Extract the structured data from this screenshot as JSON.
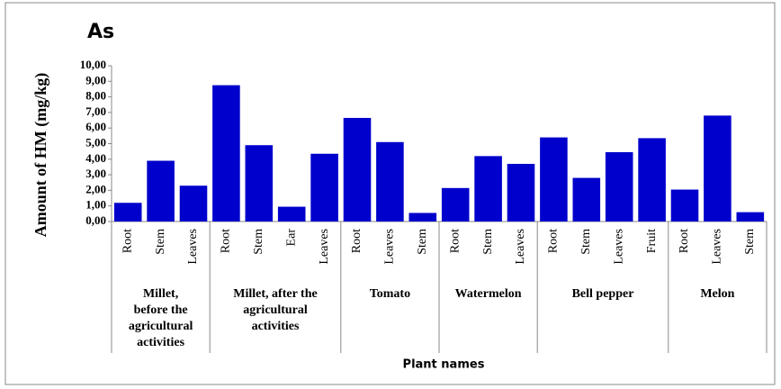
{
  "chart_data": {
    "type": "bar",
    "title": "As",
    "y_label": "Amount of HM (mg/kg)",
    "x_label": "Plant names",
    "color": "#0000cc",
    "ylim": [
      0,
      10
    ],
    "yticks": [
      {
        "value": 0,
        "label": "0,00"
      },
      {
        "value": 1,
        "label": "1,00"
      },
      {
        "value": 2,
        "label": "2,00"
      },
      {
        "value": 3,
        "label": "3,00"
      },
      {
        "value": 4,
        "label": "4,00"
      },
      {
        "value": 5,
        "label": "5,00"
      },
      {
        "value": 6,
        "label": "6,00"
      },
      {
        "value": 7,
        "label": "7,00"
      },
      {
        "value": 8,
        "label": "8,00"
      },
      {
        "value": 9,
        "label": "9,00"
      },
      {
        "value": 10,
        "label": "10,00"
      }
    ],
    "groups": [
      {
        "label": [
          "Millet,",
          "before the",
          "agricultural",
          "activities"
        ],
        "categories": [
          "Root",
          "Stem",
          "Leaves"
        ],
        "values": [
          1.2,
          3.9,
          2.3
        ]
      },
      {
        "label": [
          "Millet, after  the",
          "agricultural",
          "activities"
        ],
        "categories": [
          "Root",
          "Stem",
          "Ear",
          "Leaves"
        ],
        "values": [
          8.75,
          4.9,
          0.95,
          4.35
        ]
      },
      {
        "label": [
          "Tomato"
        ],
        "categories": [
          "Root",
          "Leaves",
          "Stem"
        ],
        "values": [
          6.65,
          5.1,
          0.55
        ]
      },
      {
        "label": [
          "Watermelon"
        ],
        "categories": [
          "Root",
          "Stem",
          "Leaves"
        ],
        "values": [
          2.15,
          4.2,
          3.7
        ]
      },
      {
        "label": [
          "Bell pepper"
        ],
        "categories": [
          "Root",
          "Stem",
          "Leaves",
          "Fruit"
        ],
        "values": [
          5.4,
          2.8,
          4.45,
          5.35
        ]
      },
      {
        "label": [
          "Melon"
        ],
        "categories": [
          "Root",
          "Leaves",
          "Stem"
        ],
        "values": [
          2.05,
          6.8,
          0.6
        ]
      }
    ]
  }
}
